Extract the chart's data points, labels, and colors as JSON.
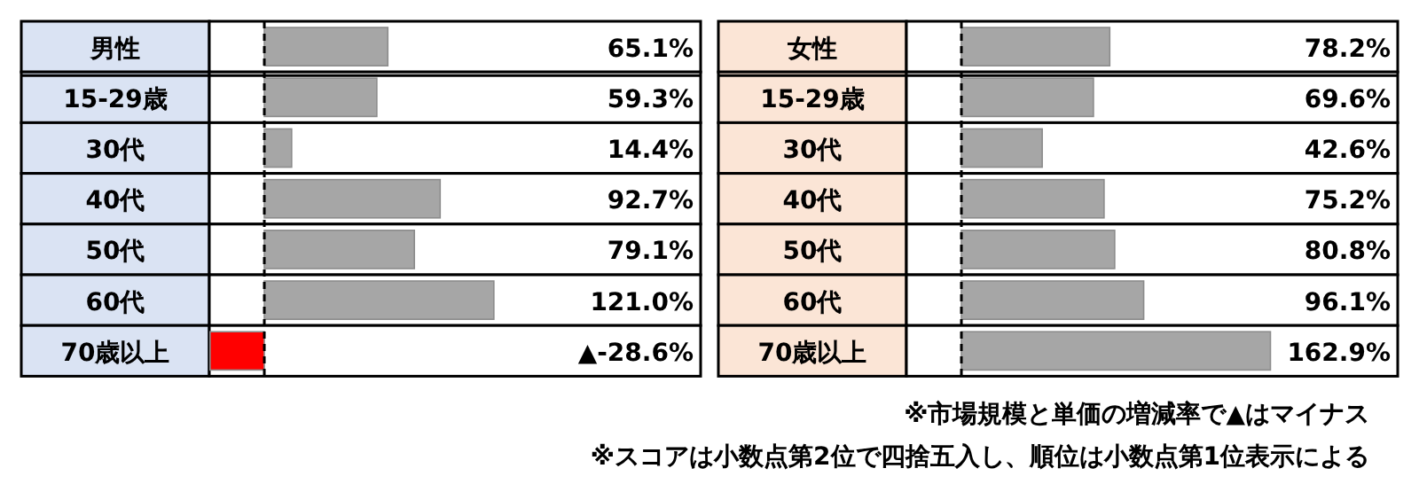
{
  "chart_data": [
    {
      "type": "bar",
      "orientation": "horizontal",
      "categories": [
        "男性",
        "15-29歳",
        "30代",
        "40代",
        "50代",
        "60代",
        "70歳以上"
      ],
      "values": [
        65.1,
        59.3,
        14.4,
        92.7,
        79.1,
        121.0,
        -28.6
      ],
      "colors": [
        "#a6a6a6",
        "#a6a6a6",
        "#a6a6a6",
        "#a6a6a6",
        "#a6a6a6",
        "#a6a6a6",
        "#ff0000"
      ],
      "value_labels": [
        "65.1%",
        "59.3%",
        "14.4%",
        "92.7%",
        "79.1%",
        "121.0%",
        "▲-28.6%"
      ],
      "xlim": [
        -29,
        230
      ],
      "ref_lines": [
        {
          "axis": "x",
          "value": 0,
          "line_style": "dashed",
          "color": "#000000"
        }
      ]
    },
    {
      "type": "bar",
      "orientation": "horizontal",
      "categories": [
        "女性",
        "15-29歳",
        "30代",
        "40代",
        "50代",
        "60代",
        "70歳以上"
      ],
      "values": [
        78.2,
        69.6,
        42.6,
        75.2,
        80.8,
        96.1,
        162.9
      ],
      "colors": [
        "#a6a6a6",
        "#a6a6a6",
        "#a6a6a6",
        "#a6a6a6",
        "#a6a6a6",
        "#a6a6a6",
        "#a6a6a6"
      ],
      "value_labels": [
        "78.2%",
        "69.6%",
        "42.6%",
        "75.2%",
        "80.8%",
        "96.1%",
        "162.9%"
      ],
      "xlim": [
        -29,
        230
      ],
      "ref_lines": [
        {
          "axis": "x",
          "value": 0,
          "line_style": "dashed",
          "color": "#000000"
        }
      ],
      "annotations": [
        "※市場規模と単価の増減率で▲はマイナス",
        "※スコアは小数点第2位で四捨五入し、順位は小数点第1位表示による"
      ]
    }
  ]
}
